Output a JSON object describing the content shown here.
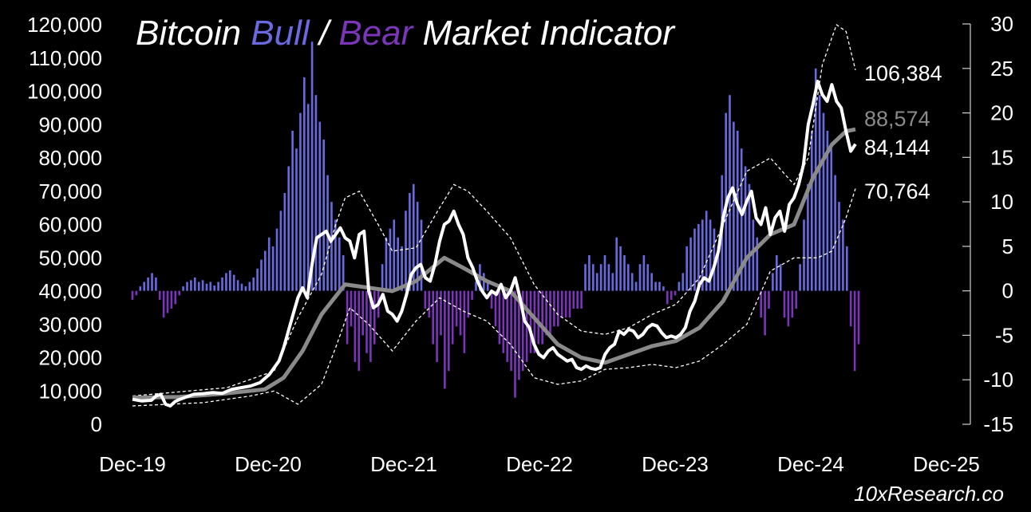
{
  "chart_data": {
    "type": "bar",
    "title": {
      "part1": "Bitcoin ",
      "part2": "Bull",
      "part3": " / ",
      "part4": "Bear",
      "part5": " Market Indicator"
    },
    "colors": {
      "bull": "#6a6ae0",
      "bear": "#7a35b8",
      "price": "#ffffff",
      "ma": "#8a8a8a",
      "band": "#ffffff",
      "axis": "#d0d0d0"
    },
    "y_left": {
      "ticks": [
        "120,000",
        "110,000",
        "100,000",
        "90,000",
        "80,000",
        "70,000",
        "60,000",
        "50,000",
        "40,000",
        "30,000",
        "20,000",
        "10,000",
        "0"
      ],
      "min": 0,
      "max": 120000
    },
    "y_right": {
      "ticks": [
        "30",
        "25",
        "20",
        "15",
        "10",
        "5",
        "0",
        "-5",
        "-10",
        "-15"
      ],
      "min": -15,
      "max": 30
    },
    "x_ticks": [
      "Dec-19",
      "Dec-20",
      "Dec-21",
      "Dec-22",
      "Dec-23",
      "Dec-24",
      "Dec-25"
    ],
    "end_labels": {
      "upper_band": "106,384",
      "moving_average": "88,574",
      "price": "84,144",
      "lower_band": "70,764"
    },
    "indicator_bars": [
      [
        0,
        -1
      ],
      [
        2,
        -0.5
      ],
      [
        4,
        0.5
      ],
      [
        6,
        1
      ],
      [
        8,
        1.5
      ],
      [
        10,
        2
      ],
      [
        12,
        1.5
      ],
      [
        14,
        -1
      ],
      [
        16,
        -3
      ],
      [
        18,
        -2.5
      ],
      [
        20,
        -2
      ],
      [
        22,
        -1.5
      ],
      [
        24,
        -0.5
      ],
      [
        26,
        0.5
      ],
      [
        28,
        1
      ],
      [
        30,
        1.2
      ],
      [
        32,
        1.5
      ],
      [
        34,
        1
      ],
      [
        36,
        1.2
      ],
      [
        38,
        0.8
      ],
      [
        40,
        1
      ],
      [
        42,
        0.6
      ],
      [
        44,
        1
      ],
      [
        46,
        1.5
      ],
      [
        48,
        2
      ],
      [
        50,
        2.3
      ],
      [
        52,
        1.8
      ],
      [
        54,
        1.2
      ],
      [
        56,
        0.8
      ],
      [
        58,
        0.5
      ],
      [
        60,
        1
      ],
      [
        62,
        1.5
      ],
      [
        64,
        2.5
      ],
      [
        66,
        3.5
      ],
      [
        68,
        4.5
      ],
      [
        70,
        6
      ],
      [
        72,
        5
      ],
      [
        74,
        7
      ],
      [
        76,
        9
      ],
      [
        78,
        11
      ],
      [
        80,
        14
      ],
      [
        82,
        18
      ],
      [
        84,
        16
      ],
      [
        86,
        20
      ],
      [
        88,
        24
      ],
      [
        90,
        21
      ],
      [
        92,
        28
      ],
      [
        94,
        22
      ],
      [
        96,
        19
      ],
      [
        98,
        17
      ],
      [
        100,
        13
      ],
      [
        102,
        10
      ],
      [
        104,
        8
      ],
      [
        106,
        6
      ],
      [
        108,
        4
      ],
      [
        110,
        -6
      ],
      [
        112,
        -4
      ],
      [
        114,
        -8
      ],
      [
        116,
        -9
      ],
      [
        118,
        -5
      ],
      [
        120,
        -7
      ],
      [
        122,
        -8
      ],
      [
        124,
        -6
      ],
      [
        126,
        -3
      ],
      [
        128,
        3
      ],
      [
        130,
        6
      ],
      [
        132,
        7
      ],
      [
        134,
        8
      ],
      [
        136,
        6
      ],
      [
        138,
        5
      ],
      [
        140,
        9
      ],
      [
        142,
        11
      ],
      [
        144,
        12
      ],
      [
        146,
        10
      ],
      [
        148,
        8
      ],
      [
        150,
        -2
      ],
      [
        152,
        -3
      ],
      [
        154,
        -6
      ],
      [
        156,
        -8
      ],
      [
        158,
        -5
      ],
      [
        160,
        -11
      ],
      [
        162,
        -9
      ],
      [
        164,
        -6
      ],
      [
        166,
        -4
      ],
      [
        168,
        -5
      ],
      [
        170,
        -7
      ],
      [
        172,
        -3
      ],
      [
        174,
        -1
      ],
      [
        176,
        1
      ],
      [
        178,
        3
      ],
      [
        180,
        2
      ],
      [
        182,
        1
      ],
      [
        184,
        -2
      ],
      [
        186,
        -4
      ],
      [
        188,
        -6
      ],
      [
        190,
        -7
      ],
      [
        192,
        -8
      ],
      [
        194,
        -9
      ],
      [
        196,
        -12
      ],
      [
        198,
        -10
      ],
      [
        200,
        -9
      ],
      [
        202,
        -8
      ],
      [
        204,
        -7
      ],
      [
        206,
        -7
      ],
      [
        208,
        -6
      ],
      [
        210,
        -6
      ],
      [
        212,
        -5
      ],
      [
        214,
        -5
      ],
      [
        216,
        -4
      ],
      [
        218,
        -4
      ],
      [
        220,
        -3
      ],
      [
        222,
        -3
      ],
      [
        224,
        -3
      ],
      [
        226,
        -2
      ],
      [
        228,
        -2
      ],
      [
        230,
        -2
      ],
      [
        232,
        3
      ],
      [
        234,
        4
      ],
      [
        236,
        3
      ],
      [
        238,
        2
      ],
      [
        240,
        3
      ],
      [
        242,
        4
      ],
      [
        244,
        3
      ],
      [
        246,
        2
      ],
      [
        248,
        6
      ],
      [
        250,
        5
      ],
      [
        252,
        4
      ],
      [
        254,
        3
      ],
      [
        256,
        2
      ],
      [
        258,
        1
      ],
      [
        260,
        3
      ],
      [
        262,
        4
      ],
      [
        264,
        3
      ],
      [
        266,
        2
      ],
      [
        268,
        1
      ],
      [
        270,
        1
      ],
      [
        272,
        0.5
      ],
      [
        274,
        -1.5
      ],
      [
        276,
        -1
      ],
      [
        278,
        -0.5
      ],
      [
        280,
        1
      ],
      [
        282,
        2
      ],
      [
        284,
        5
      ],
      [
        286,
        6
      ],
      [
        288,
        7
      ],
      [
        290,
        7.5
      ],
      [
        292,
        8
      ],
      [
        294,
        9
      ],
      [
        296,
        8
      ],
      [
        298,
        7
      ],
      [
        300,
        5
      ],
      [
        302,
        13
      ],
      [
        304,
        20
      ],
      [
        306,
        22
      ],
      [
        308,
        19
      ],
      [
        310,
        18
      ],
      [
        312,
        16
      ],
      [
        314,
        14
      ],
      [
        316,
        12
      ],
      [
        318,
        8
      ],
      [
        320,
        6
      ],
      [
        322,
        -3
      ],
      [
        324,
        -5
      ],
      [
        326,
        -2
      ],
      [
        328,
        2
      ],
      [
        330,
        4
      ],
      [
        332,
        3
      ],
      [
        334,
        -3
      ],
      [
        336,
        -4
      ],
      [
        338,
        -3
      ],
      [
        340,
        -2
      ],
      [
        342,
        3
      ],
      [
        344,
        8
      ],
      [
        346,
        12
      ],
      [
        348,
        18
      ],
      [
        350,
        25
      ],
      [
        352,
        22
      ],
      [
        354,
        20
      ],
      [
        356,
        18
      ],
      [
        358,
        16
      ],
      [
        360,
        13
      ],
      [
        362,
        10
      ],
      [
        364,
        8
      ],
      [
        366,
        5
      ],
      [
        368,
        -4
      ],
      [
        370,
        -9
      ],
      [
        372,
        -6
      ]
    ],
    "price_series": [
      [
        0,
        7500
      ],
      [
        4,
        7000
      ],
      [
        8,
        7200
      ],
      [
        10,
        8500
      ],
      [
        12,
        9000
      ],
      [
        14,
        6000
      ],
      [
        16,
        5500
      ],
      [
        18,
        6800
      ],
      [
        20,
        7500
      ],
      [
        22,
        8000
      ],
      [
        26,
        9000
      ],
      [
        30,
        9200
      ],
      [
        34,
        9500
      ],
      [
        38,
        9300
      ],
      [
        42,
        10500
      ],
      [
        46,
        11000
      ],
      [
        50,
        11500
      ],
      [
        54,
        12500
      ],
      [
        58,
        15000
      ],
      [
        60,
        17000
      ],
      [
        62,
        19000
      ],
      [
        64,
        23000
      ],
      [
        66,
        28000
      ],
      [
        68,
        33000
      ],
      [
        70,
        38000
      ],
      [
        72,
        41000
      ],
      [
        74,
        38000
      ],
      [
        76,
        48000
      ],
      [
        78,
        56000
      ],
      [
        80,
        57000
      ],
      [
        82,
        58000
      ],
      [
        84,
        55000
      ],
      [
        86,
        57000
      ],
      [
        88,
        59000
      ],
      [
        90,
        56000
      ],
      [
        92,
        55000
      ],
      [
        94,
        50000
      ],
      [
        96,
        57000
      ],
      [
        98,
        58000
      ],
      [
        100,
        40000
      ],
      [
        102,
        35000
      ],
      [
        104,
        36000
      ],
      [
        106,
        39000
      ],
      [
        108,
        34000
      ],
      [
        110,
        33000
      ],
      [
        112,
        31000
      ],
      [
        114,
        34000
      ],
      [
        116,
        39000
      ],
      [
        118,
        45000
      ],
      [
        120,
        47000
      ],
      [
        122,
        48000
      ],
      [
        124,
        44000
      ],
      [
        126,
        43000
      ],
      [
        128,
        48000
      ],
      [
        130,
        55000
      ],
      [
        132,
        60000
      ],
      [
        134,
        61000
      ],
      [
        136,
        64000
      ],
      [
        138,
        60000
      ],
      [
        140,
        57000
      ],
      [
        142,
        50000
      ],
      [
        144,
        47000
      ],
      [
        146,
        43000
      ],
      [
        148,
        40000
      ],
      [
        150,
        38000
      ],
      [
        152,
        40000
      ],
      [
        154,
        39000
      ],
      [
        156,
        42000
      ],
      [
        158,
        38000
      ],
      [
        160,
        40000
      ],
      [
        162,
        44000
      ],
      [
        164,
        38000
      ],
      [
        166,
        31000
      ],
      [
        168,
        29000
      ],
      [
        170,
        24000
      ],
      [
        172,
        21000
      ],
      [
        174,
        20000
      ],
      [
        176,
        22000
      ],
      [
        178,
        23000
      ],
      [
        180,
        21000
      ],
      [
        182,
        20000
      ],
      [
        184,
        19000
      ],
      [
        186,
        19500
      ],
      [
        188,
        17000
      ],
      [
        190,
        16500
      ],
      [
        192,
        17500
      ],
      [
        194,
        16800
      ],
      [
        196,
        16500
      ],
      [
        198,
        17000
      ],
      [
        200,
        21000
      ],
      [
        202,
        23000
      ],
      [
        204,
        24000
      ],
      [
        206,
        28000
      ],
      [
        208,
        27000
      ],
      [
        210,
        28500
      ],
      [
        212,
        28000
      ],
      [
        214,
        26000
      ],
      [
        216,
        27000
      ],
      [
        218,
        29000
      ],
      [
        220,
        30000
      ],
      [
        222,
        29500
      ],
      [
        224,
        27500
      ],
      [
        226,
        26000
      ],
      [
        228,
        26500
      ],
      [
        230,
        26000
      ],
      [
        232,
        27000
      ],
      [
        234,
        29000
      ],
      [
        236,
        34000
      ],
      [
        238,
        37000
      ],
      [
        240,
        42000
      ],
      [
        242,
        44000
      ],
      [
        244,
        43000
      ],
      [
        246,
        47000
      ],
      [
        248,
        52000
      ],
      [
        250,
        62000
      ],
      [
        252,
        68000
      ],
      [
        254,
        71000
      ],
      [
        256,
        66000
      ],
      [
        258,
        63000
      ],
      [
        260,
        67000
      ],
      [
        262,
        70000
      ],
      [
        264,
        62000
      ],
      [
        266,
        60000
      ],
      [
        268,
        65000
      ],
      [
        270,
        57000
      ],
      [
        272,
        62000
      ],
      [
        274,
        64000
      ],
      [
        276,
        58000
      ],
      [
        278,
        66000
      ],
      [
        280,
        68000
      ],
      [
        282,
        72000
      ],
      [
        284,
        78000
      ],
      [
        286,
        90000
      ],
      [
        288,
        96000
      ],
      [
        290,
        103000
      ],
      [
        292,
        99000
      ],
      [
        294,
        97000
      ],
      [
        296,
        102000
      ],
      [
        298,
        97000
      ],
      [
        300,
        95000
      ],
      [
        302,
        88000
      ],
      [
        304,
        82000
      ],
      [
        306,
        84144
      ]
    ],
    "moving_average_series": [
      [
        0,
        8000
      ],
      [
        20,
        8200
      ],
      [
        40,
        9300
      ],
      [
        56,
        10500
      ],
      [
        64,
        14000
      ],
      [
        72,
        22000
      ],
      [
        80,
        33000
      ],
      [
        90,
        42000
      ],
      [
        100,
        41000
      ],
      [
        110,
        40000
      ],
      [
        120,
        43000
      ],
      [
        132,
        50000
      ],
      [
        140,
        47000
      ],
      [
        150,
        43000
      ],
      [
        160,
        40000
      ],
      [
        170,
        32000
      ],
      [
        180,
        24000
      ],
      [
        190,
        20000
      ],
      [
        200,
        18500
      ],
      [
        210,
        21000
      ],
      [
        220,
        23500
      ],
      [
        230,
        25000
      ],
      [
        240,
        29000
      ],
      [
        250,
        37000
      ],
      [
        260,
        50000
      ],
      [
        270,
        57000
      ],
      [
        280,
        60000
      ],
      [
        288,
        74000
      ],
      [
        296,
        84000
      ],
      [
        302,
        88000
      ],
      [
        306,
        88574
      ]
    ],
    "upper_band_series": [
      [
        0,
        8500
      ],
      [
        40,
        11000
      ],
      [
        60,
        16000
      ],
      [
        70,
        32000
      ],
      [
        80,
        45000
      ],
      [
        86,
        60000
      ],
      [
        90,
        68000
      ],
      [
        96,
        70000
      ],
      [
        104,
        60000
      ],
      [
        110,
        52000
      ],
      [
        120,
        53000
      ],
      [
        130,
        65000
      ],
      [
        136,
        72000
      ],
      [
        142,
        70000
      ],
      [
        150,
        64000
      ],
      [
        160,
        56000
      ],
      [
        170,
        42000
      ],
      [
        180,
        33000
      ],
      [
        190,
        28000
      ],
      [
        200,
        27000
      ],
      [
        210,
        29000
      ],
      [
        220,
        33000
      ],
      [
        230,
        36000
      ],
      [
        240,
        44000
      ],
      [
        250,
        60000
      ],
      [
        260,
        76000
      ],
      [
        270,
        80000
      ],
      [
        280,
        72000
      ],
      [
        286,
        80000
      ],
      [
        292,
        108000
      ],
      [
        298,
        120000
      ],
      [
        302,
        118000
      ],
      [
        306,
        106384
      ]
    ],
    "lower_band_series": [
      [
        0,
        5500
      ],
      [
        30,
        6500
      ],
      [
        50,
        8500
      ],
      [
        60,
        10000
      ],
      [
        70,
        6000
      ],
      [
        80,
        12000
      ],
      [
        86,
        23000
      ],
      [
        92,
        35000
      ],
      [
        100,
        30000
      ],
      [
        110,
        22000
      ],
      [
        120,
        31000
      ],
      [
        130,
        38000
      ],
      [
        140,
        34000
      ],
      [
        150,
        31000
      ],
      [
        160,
        24000
      ],
      [
        170,
        14000
      ],
      [
        180,
        12000
      ],
      [
        190,
        13000
      ],
      [
        200,
        16500
      ],
      [
        210,
        17000
      ],
      [
        220,
        18000
      ],
      [
        230,
        17000
      ],
      [
        240,
        19000
      ],
      [
        250,
        24000
      ],
      [
        260,
        30000
      ],
      [
        270,
        46000
      ],
      [
        280,
        50000
      ],
      [
        290,
        50000
      ],
      [
        296,
        52000
      ],
      [
        302,
        62000
      ],
      [
        306,
        70764
      ]
    ]
  },
  "watermark": "10xResearch.co"
}
